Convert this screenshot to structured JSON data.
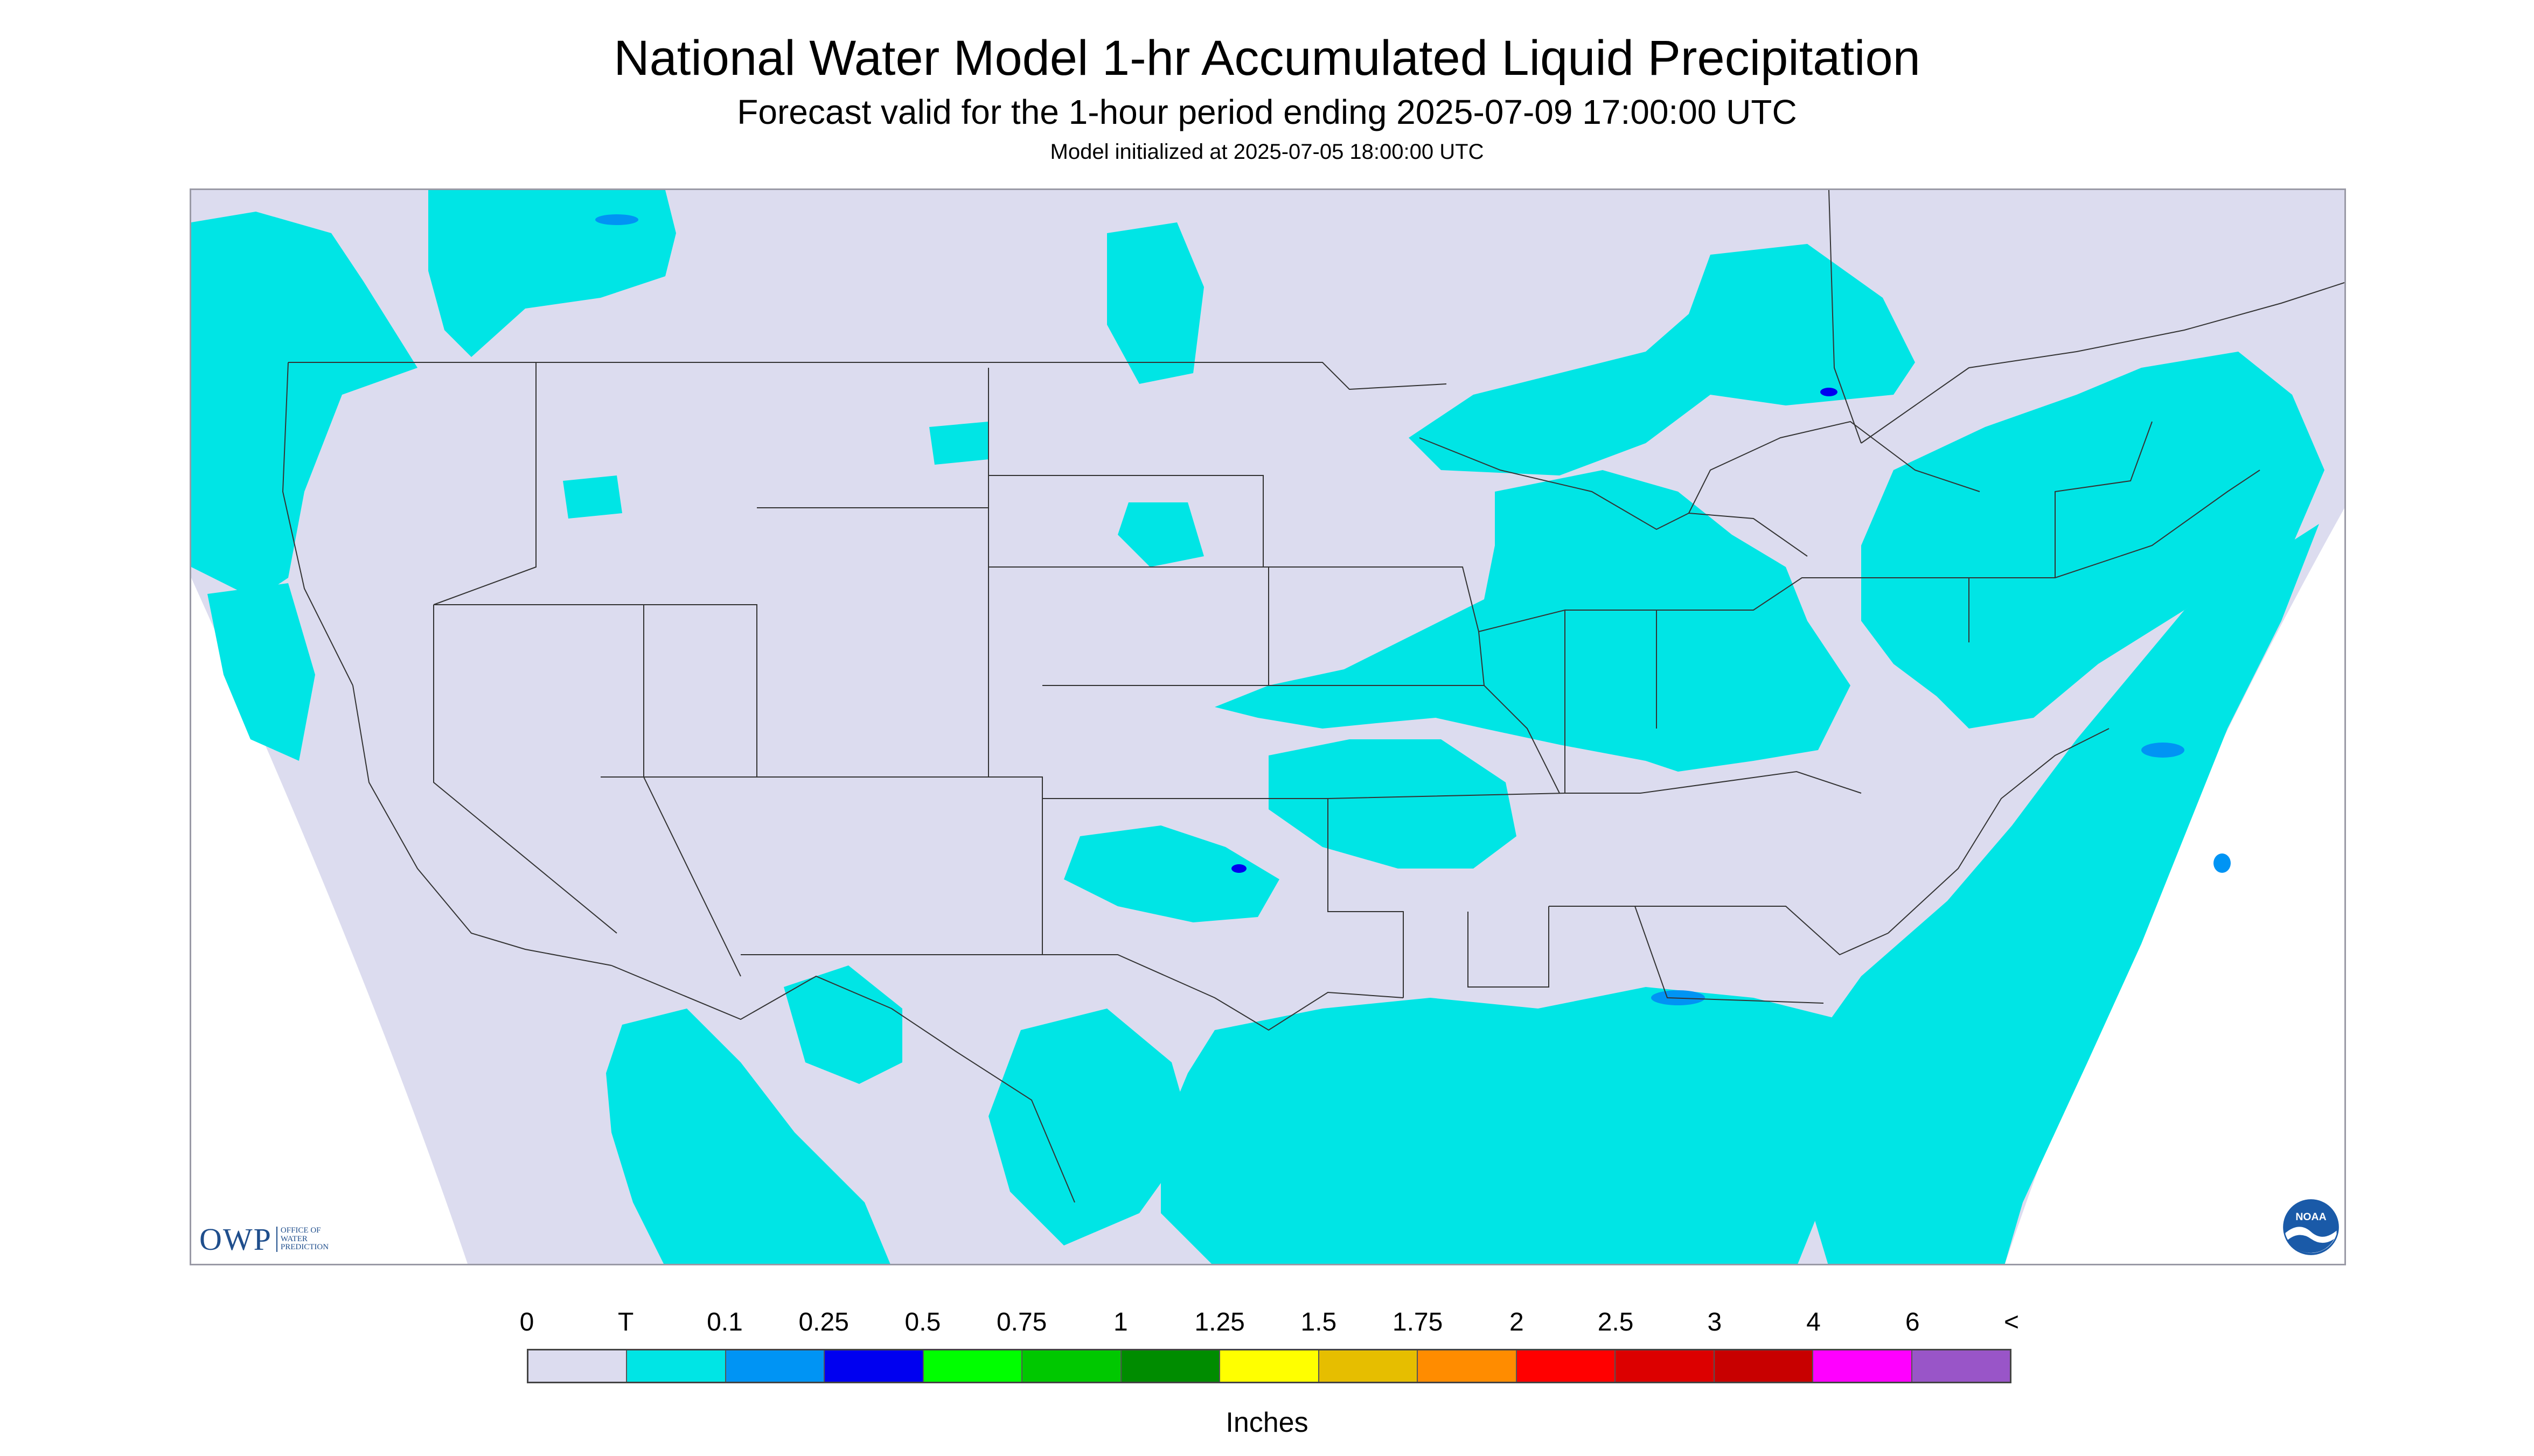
{
  "header": {
    "title": "National Water Model 1-hr Accumulated Liquid Precipitation",
    "subtitle": "Forecast valid for the 1-hour period ending 2025-07-09 17:00:00 UTC",
    "init": "Model initialized at 2025-07-05 18:00:00 UTC"
  },
  "map": {
    "background_color": "#dcdcef",
    "outside_color": "#ffffff",
    "precip_light_color": "#00e5e5",
    "precip_medium_color": "#0094f4",
    "precip_heavy_color": "#0000f0",
    "boundary_color": "#333333"
  },
  "logos": {
    "owp_text": "OWP",
    "owp_sub": [
      "OFFICE OF",
      "WATER",
      "PREDICTION"
    ],
    "noaa_text": "NOAA"
  },
  "legend": {
    "labels": [
      "0",
      "T",
      "0.1",
      "0.25",
      "0.5",
      "0.75",
      "1",
      "1.25",
      "1.5",
      "1.75",
      "2",
      "2.5",
      "3",
      "4",
      "6",
      "<"
    ],
    "colors": [
      "#dcdcef",
      "#00e5e5",
      "#0094f4",
      "#0000f0",
      "#00ff00",
      "#00c800",
      "#008c00",
      "#ffff00",
      "#e6be00",
      "#ff8c00",
      "#ff0000",
      "#dc0000",
      "#c80000",
      "#ff00ff",
      "#9955c8"
    ],
    "units": "Inches"
  }
}
